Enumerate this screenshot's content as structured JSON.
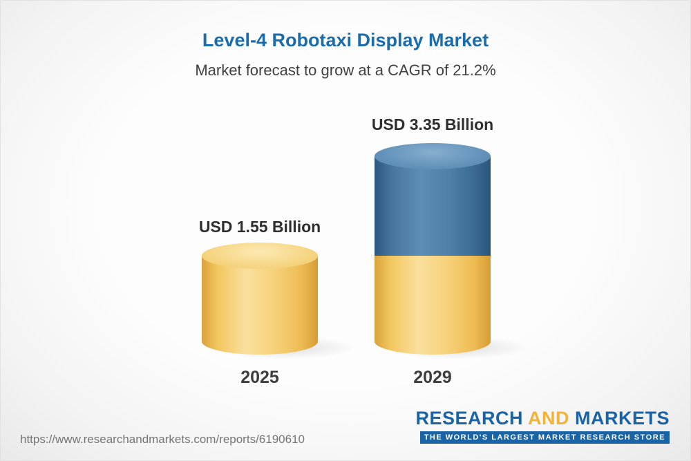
{
  "header": {
    "title": "Level-4 Robotaxi Display Market",
    "subtitle": "Market forecast to grow at a CAGR of 21.2%"
  },
  "chart_data": {
    "type": "bar",
    "variant": "3d-cylinder",
    "categories": [
      "2025",
      "2029"
    ],
    "values": [
      1.55,
      3.35
    ],
    "unit": "USD Billion",
    "value_labels": [
      "USD 1.55 Billion",
      "USD 3.35 Billion"
    ],
    "cagr": "21.2%",
    "title": "Level-4 Robotaxi Display Market",
    "legend": "none",
    "grid": false,
    "notes": "2029 bar is stacked: base segment (yellow) equals 2025 value, incremental growth segment (blue) on top",
    "colors": {
      "bar_yellow": "#f3cd72",
      "bar_blue": "#41719c",
      "title_blue": "#1b6cab",
      "text_dark": "#2e2e2e"
    }
  },
  "footer": {
    "url": "https://www.researchandmarkets.com/reports/6190610",
    "logo": {
      "research": "RESEARCH",
      "and": "AND",
      "markets": "MARKETS",
      "tagline": "THE WORLD'S LARGEST MARKET RESEARCH STORE"
    }
  }
}
